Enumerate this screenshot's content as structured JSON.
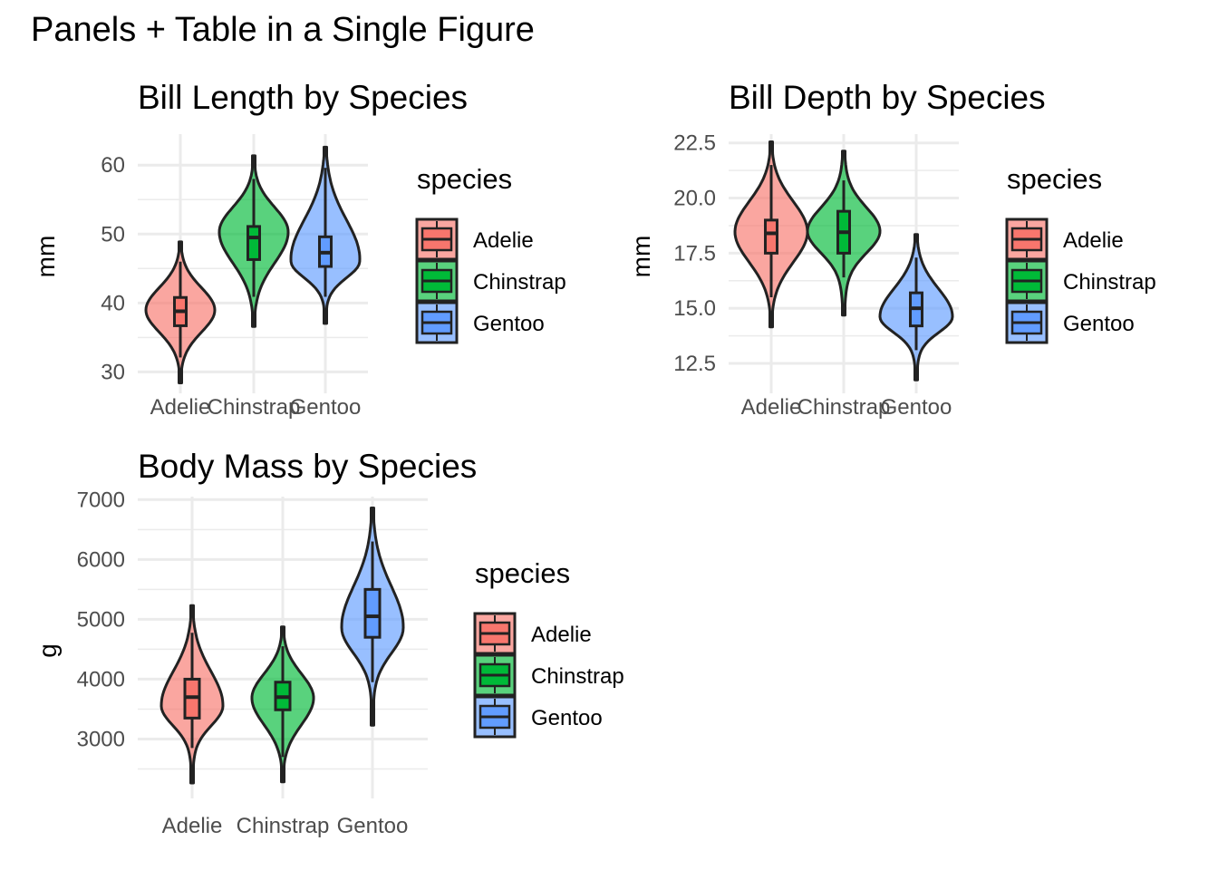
{
  "figure_title": "Panels + Table in a Single Figure",
  "chart_data": [
    {
      "type": "violin",
      "title": "Bill Length by Species",
      "xlabel": "",
      "ylabel": "mm",
      "categories": [
        "Adelie",
        "Chinstrap",
        "Gentoo"
      ],
      "yticks": [
        30,
        40,
        50,
        60
      ],
      "ylim": [
        29,
        64.5
      ],
      "grid": true,
      "legend": {
        "title": "species",
        "position": "right",
        "entries": [
          "Adelie",
          "Chinstrap",
          "Gentoo"
        ]
      },
      "series": [
        {
          "name": "Adelie",
          "min": 32.1,
          "q1": 36.7,
          "median": 38.8,
          "q3": 40.8,
          "max": 46.0,
          "violin_min": 32.1,
          "violin_max": 46.0,
          "whisker_max": 46.0,
          "mode": 39.0
        },
        {
          "name": "Chinstrap",
          "min": 40.9,
          "q1": 46.3,
          "median": 49.5,
          "q3": 51.1,
          "max": 58.0,
          "violin_min": 40.9,
          "violin_max": 58.0,
          "mode": 50.5
        },
        {
          "name": "Gentoo",
          "min": 40.9,
          "q1": 45.3,
          "median": 47.3,
          "q3": 49.6,
          "max": 59.6,
          "violin_min": 40.9,
          "violin_max": 59.6,
          "mode": 46.0
        }
      ]
    },
    {
      "type": "violin",
      "title": "Bill Depth by Species",
      "xlabel": "",
      "ylabel": "mm",
      "categories": [
        "Adelie",
        "Chinstrap",
        "Gentoo"
      ],
      "yticks": [
        12.5,
        15.0,
        17.5,
        20.0,
        22.5
      ],
      "ylim": [
        11.8,
        22.9
      ],
      "grid": true,
      "legend": {
        "title": "species",
        "position": "right",
        "entries": [
          "Adelie",
          "Chinstrap",
          "Gentoo"
        ]
      },
      "series": [
        {
          "name": "Adelie",
          "min": 15.5,
          "q1": 17.5,
          "median": 18.4,
          "q3": 19.0,
          "max": 21.5,
          "mode": 18.5
        },
        {
          "name": "Chinstrap",
          "min": 16.4,
          "q1": 17.5,
          "median": 18.45,
          "q3": 19.4,
          "max": 20.8,
          "mode": 18.5
        },
        {
          "name": "Gentoo",
          "min": 13.1,
          "q1": 14.2,
          "median": 15.0,
          "q3": 15.7,
          "max": 17.3,
          "mode": 14.6
        }
      ]
    },
    {
      "type": "violin",
      "title": "Body Mass by Species",
      "xlabel": "",
      "ylabel": "g",
      "categories": [
        "Adelie",
        "Chinstrap",
        "Gentoo"
      ],
      "yticks": [
        3000,
        4000,
        5000,
        6000,
        7000
      ],
      "ylim": [
        2250,
        7050
      ],
      "grid": true,
      "legend": {
        "title": "species",
        "position": "right",
        "entries": [
          "Adelie",
          "Chinstrap",
          "Gentoo"
        ]
      },
      "series": [
        {
          "name": "Adelie",
          "min": 2850,
          "q1": 3350,
          "median": 3700,
          "q3": 4000,
          "max": 4775,
          "mode": 3550
        },
        {
          "name": "Chinstrap",
          "min": 2700,
          "q1": 3488,
          "median": 3700,
          "q3": 3950,
          "max": 4550,
          "mode": 3680
        },
        {
          "name": "Gentoo",
          "min": 3950,
          "q1": 4700,
          "median": 5050,
          "q3": 5500,
          "max": 6300,
          "mode": 4850
        }
      ]
    }
  ],
  "colors": {
    "Adelie": "#F8766D",
    "Chinstrap": "#00BA38",
    "Gentoo": "#619CFF",
    "grid": "#EBEBEB",
    "outline": "#222222",
    "tick_text": "#4D4D4D"
  }
}
